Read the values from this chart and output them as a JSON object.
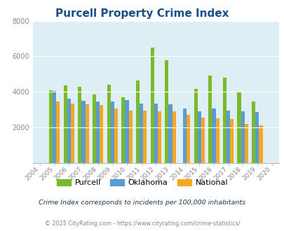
{
  "title": "Purcell Property Crime Index",
  "years": [
    "2004",
    "2005",
    "2006",
    "2007",
    "2008",
    "2009",
    "2010",
    "2011",
    "2012",
    "2013",
    "2014",
    "2015",
    "2016",
    "2017",
    "2018",
    "2019",
    "2020"
  ],
  "purcell": [
    0,
    4100,
    4350,
    4300,
    3850,
    4400,
    3700,
    4650,
    6500,
    5800,
    0,
    4150,
    4900,
    4800,
    3950,
    3450,
    0
  ],
  "oklahoma": [
    0,
    4050,
    3600,
    3500,
    3450,
    3450,
    3550,
    3350,
    3350,
    3300,
    3050,
    2900,
    3050,
    2950,
    2900,
    2850,
    0
  ],
  "national": [
    0,
    3450,
    3350,
    3300,
    3250,
    3050,
    2950,
    2950,
    2900,
    2900,
    2700,
    2550,
    2500,
    2450,
    2200,
    2100,
    0
  ],
  "purcell_color": "#7aba2a",
  "oklahoma_color": "#5b9bd5",
  "national_color": "#f5a623",
  "bg_color": "#ddeef5",
  "ylim": [
    0,
    8000
  ],
  "yticks": [
    0,
    2000,
    4000,
    6000,
    8000
  ],
  "subtitle": "Crime Index corresponds to incidents per 100,000 inhabitants",
  "footer": "© 2025 CityRating.com - https://www.cityrating.com/crime-statistics/",
  "title_color": "#1a4f8a",
  "subtitle_color": "#1a3a5c",
  "footer_color": "#7f8c8d",
  "bar_width": 0.25
}
